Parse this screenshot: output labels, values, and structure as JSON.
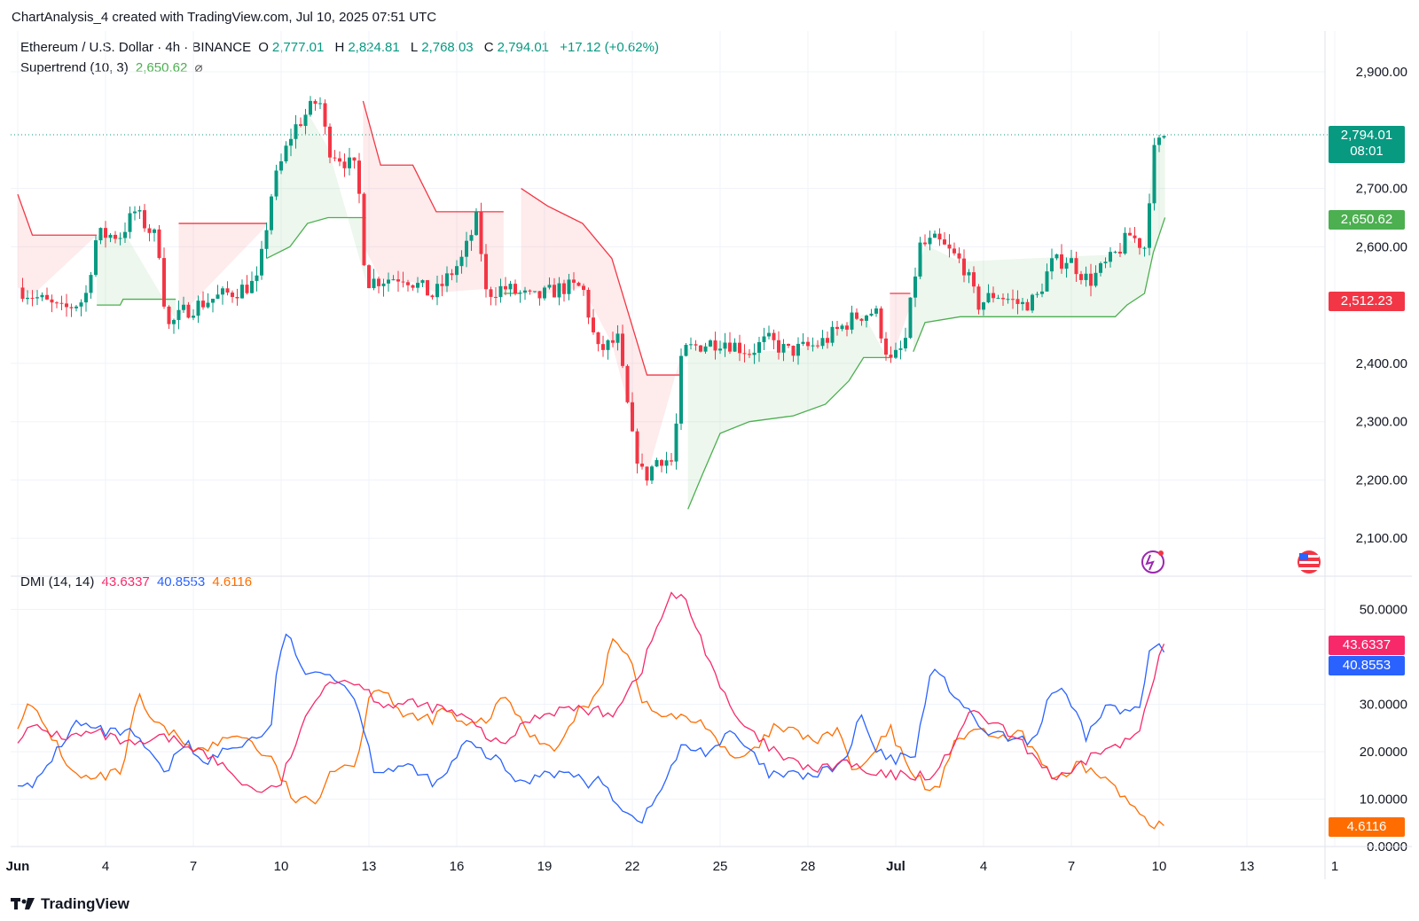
{
  "header": {
    "attribution": "ChartAnalysis_4 created with TradingView.com, Jul 10, 2025 07:51 UTC"
  },
  "symbol": {
    "name": "Ethereum / U.S. Dollar · 4h · BINANCE",
    "o_label": "O",
    "o": "2,777.01",
    "h_label": "H",
    "h": "2,824.81",
    "l_label": "L",
    "l": "2,768.03",
    "c_label": "C",
    "c": "2,794.01",
    "change": "+17.12 (+0.62%)"
  },
  "supertrend": {
    "label": "Supertrend (10, 3)",
    "value": "2,650.62",
    "icon": "hidden-eye-icon"
  },
  "dmi": {
    "label": "DMI (14, 14)",
    "plus_di": "43.6337",
    "minus_di": "40.8553",
    "adx": "4.6116"
  },
  "badges": {
    "price": "2,794.01",
    "countdown": "08:01",
    "supertrend": "2,650.62",
    "supertrend_red": "2,512.23",
    "dmi_plus": "43.6337",
    "dmi_minus": "40.8553",
    "dmi_adx": "4.6116"
  },
  "colors": {
    "up": "#089981",
    "down": "#f23645",
    "st_up": "#4caf50",
    "st_down": "#f23645",
    "plus_di": "#f7296a",
    "minus_di": "#2962ff",
    "adx": "#ff6d00"
  },
  "brand": "TradingView",
  "chart_data": {
    "type": "candlestick",
    "price_axis": {
      "ticks": [
        "2,900.00",
        "2,700.00",
        "2,600.00",
        "2,400.00",
        "2,300.00",
        "2,200.00",
        "2,100.00"
      ],
      "tick_values": [
        2900,
        2700,
        2600,
        2400,
        2300,
        2200,
        2100
      ],
      "range": [
        2035,
        2970
      ]
    },
    "dmi_axis": {
      "ticks": [
        "50.0000",
        "30.0000",
        "20.0000",
        "10.0000",
        "0.0000"
      ],
      "tick_values": [
        50,
        30,
        20,
        10,
        0
      ],
      "range": [
        0,
        57
      ]
    },
    "x_axis": {
      "ticks": [
        "Jun",
        "4",
        "7",
        "10",
        "13",
        "16",
        "19",
        "22",
        "25",
        "28",
        "Jul",
        "4",
        "7",
        "10",
        "13",
        "1"
      ],
      "tick_days": [
        1,
        4,
        7,
        10,
        13,
        16,
        19,
        22,
        25,
        28,
        31,
        34,
        37,
        40,
        43,
        46
      ]
    },
    "close_anchors": [
      [
        1,
        2530
      ],
      [
        2.5,
        2490
      ],
      [
        3.3,
        2510
      ],
      [
        3.7,
        2620
      ],
      [
        4.5,
        2620
      ],
      [
        5,
        2660
      ],
      [
        5.8,
        2610
      ],
      [
        6.1,
        2460
      ],
      [
        6.7,
        2490
      ],
      [
        7.6,
        2510
      ],
      [
        8.5,
        2525
      ],
      [
        9.2,
        2540
      ],
      [
        9.7,
        2700
      ],
      [
        10.4,
        2800
      ],
      [
        11.3,
        2855
      ],
      [
        11.6,
        2770
      ],
      [
        12.6,
        2730
      ],
      [
        12.9,
        2540
      ],
      [
        14.2,
        2550
      ],
      [
        15.2,
        2515
      ],
      [
        16.2,
        2580
      ],
      [
        16.7,
        2650
      ],
      [
        17,
        2520
      ],
      [
        17.6,
        2530
      ],
      [
        18.6,
        2510
      ],
      [
        19.6,
        2530
      ],
      [
        20.3,
        2530
      ],
      [
        20.8,
        2420
      ],
      [
        21.5,
        2440
      ],
      [
        22,
        2270
      ],
      [
        22.4,
        2200
      ],
      [
        22.9,
        2240
      ],
      [
        23.4,
        2230
      ],
      [
        23.7,
        2420
      ],
      [
        24.2,
        2430
      ],
      [
        25.1,
        2440
      ],
      [
        26,
        2420
      ],
      [
        26.6,
        2440
      ],
      [
        27.3,
        2420
      ],
      [
        28.2,
        2430
      ],
      [
        28.6,
        2440
      ],
      [
        29.6,
        2480
      ],
      [
        30.3,
        2490
      ],
      [
        30.8,
        2400
      ],
      [
        31.3,
        2430
      ],
      [
        31.8,
        2600
      ],
      [
        32.4,
        2610
      ],
      [
        33.3,
        2570
      ],
      [
        33.8,
        2500
      ],
      [
        34.4,
        2520
      ],
      [
        35.3,
        2500
      ],
      [
        35.8,
        2510
      ],
      [
        36.3,
        2570
      ],
      [
        36.9,
        2580
      ],
      [
        37.6,
        2540
      ],
      [
        38.4,
        2580
      ],
      [
        39,
        2620
      ],
      [
        39.5,
        2600
      ],
      [
        39.8,
        2760
      ],
      [
        40.2,
        2794
      ]
    ],
    "supertrend_anchors": [
      [
        1,
        2690,
        "down"
      ],
      [
        1.5,
        2620,
        "down"
      ],
      [
        3.7,
        2620,
        "down"
      ],
      [
        3.7,
        2500,
        "up"
      ],
      [
        4.5,
        2500,
        "up"
      ],
      [
        4.6,
        2510,
        "up"
      ],
      [
        6.4,
        2510,
        "up"
      ],
      [
        6.5,
        2640,
        "down"
      ],
      [
        9.5,
        2640,
        "down"
      ],
      [
        9.5,
        2580,
        "up"
      ],
      [
        10.3,
        2600,
        "up"
      ],
      [
        10.9,
        2640,
        "up"
      ],
      [
        11.6,
        2650,
        "up"
      ],
      [
        12.9,
        2650,
        "up"
      ],
      [
        12.8,
        2850,
        "down"
      ],
      [
        13.4,
        2740,
        "down"
      ],
      [
        14.5,
        2740,
        "down"
      ],
      [
        15.3,
        2660,
        "down"
      ],
      [
        17.6,
        2660,
        "down"
      ],
      [
        17.6,
        2520,
        "up"
      ],
      [
        18.2,
        2520,
        "up"
      ],
      [
        18.2,
        2700,
        "down"
      ],
      [
        19.1,
        2670,
        "down"
      ],
      [
        20.3,
        2640,
        "down"
      ],
      [
        21.3,
        2580,
        "down"
      ],
      [
        22.5,
        2380,
        "down"
      ],
      [
        23.7,
        2380,
        "down"
      ],
      [
        23.9,
        2150,
        "up"
      ],
      [
        24.4,
        2210,
        "up"
      ],
      [
        25,
        2280,
        "up"
      ],
      [
        26,
        2300,
        "up"
      ],
      [
        27.5,
        2310,
        "up"
      ],
      [
        28.6,
        2330,
        "up"
      ],
      [
        29.4,
        2370,
        "up"
      ],
      [
        29.9,
        2410,
        "up"
      ],
      [
        30.8,
        2410,
        "up"
      ],
      [
        30.8,
        2520,
        "down"
      ],
      [
        31.5,
        2520,
        "down"
      ],
      [
        31.6,
        2420,
        "up"
      ],
      [
        32,
        2470,
        "up"
      ],
      [
        33.2,
        2480,
        "up"
      ],
      [
        38.5,
        2480,
        "up"
      ],
      [
        38.9,
        2500,
        "up"
      ],
      [
        39.5,
        2520,
        "up"
      ],
      [
        39.8,
        2590,
        "up"
      ],
      [
        40.2,
        2650,
        "up"
      ]
    ],
    "plus_di_anchors": [
      [
        1,
        23
      ],
      [
        1.5,
        25
      ],
      [
        2.7,
        23
      ],
      [
        3.7,
        24
      ],
      [
        5,
        21
      ],
      [
        6,
        23
      ],
      [
        7,
        21
      ],
      [
        8,
        17
      ],
      [
        9,
        12
      ],
      [
        9.9,
        12
      ],
      [
        10.5,
        22
      ],
      [
        11.5,
        35
      ],
      [
        12.5,
        35
      ],
      [
        13.5,
        30
      ],
      [
        14.5,
        30
      ],
      [
        15.5,
        29
      ],
      [
        16.3,
        27
      ],
      [
        17.5,
        21
      ],
      [
        18.5,
        27
      ],
      [
        19.5,
        29
      ],
      [
        20.2,
        29
      ],
      [
        21.3,
        28
      ],
      [
        22.3,
        37
      ],
      [
        22.7,
        44
      ],
      [
        23.3,
        53
      ],
      [
        23.8,
        52
      ],
      [
        24.6,
        40
      ],
      [
        25.4,
        28
      ],
      [
        26.2,
        23
      ],
      [
        27.3,
        18
      ],
      [
        28.4,
        16
      ],
      [
        29.3,
        18
      ],
      [
        30.1,
        15
      ],
      [
        31,
        15
      ],
      [
        31.7,
        15
      ],
      [
        32.4,
        15
      ],
      [
        33.4,
        27
      ],
      [
        33.8,
        28
      ],
      [
        34.8,
        24
      ],
      [
        35.6,
        20
      ],
      [
        36.5,
        14
      ],
      [
        37.2,
        16
      ],
      [
        37.8,
        20
      ],
      [
        38.6,
        21
      ],
      [
        39.3,
        24
      ],
      [
        39.7,
        34
      ],
      [
        40.2,
        43.6
      ]
    ],
    "minus_di_anchors": [
      [
        1,
        14
      ],
      [
        1.5,
        12
      ],
      [
        2.3,
        20
      ],
      [
        3,
        26
      ],
      [
        4,
        24
      ],
      [
        4.8,
        24
      ],
      [
        5.5,
        20
      ],
      [
        6,
        15
      ],
      [
        6.8,
        23
      ],
      [
        7.3,
        17
      ],
      [
        8,
        20
      ],
      [
        8.8,
        22
      ],
      [
        9.7,
        25
      ],
      [
        9.9,
        41
      ],
      [
        10.3,
        45
      ],
      [
        10.8,
        35
      ],
      [
        11.4,
        38
      ],
      [
        12.5,
        32
      ],
      [
        13.2,
        16
      ],
      [
        14.2,
        17
      ],
      [
        15.4,
        13
      ],
      [
        16.3,
        22
      ],
      [
        17.4,
        18
      ],
      [
        18.2,
        13
      ],
      [
        19,
        16
      ],
      [
        20,
        15
      ],
      [
        20.6,
        13
      ],
      [
        21,
        14
      ],
      [
        21.4,
        10
      ],
      [
        22,
        6
      ],
      [
        22.4,
        6
      ],
      [
        22.8,
        10
      ],
      [
        23.7,
        21
      ],
      [
        24.6,
        20
      ],
      [
        25.4,
        24
      ],
      [
        26,
        20
      ],
      [
        26.7,
        15
      ],
      [
        28.3,
        15
      ],
      [
        29.3,
        18
      ],
      [
        29.8,
        28
      ],
      [
        30.3,
        20
      ],
      [
        30.9,
        18
      ],
      [
        31.7,
        20
      ],
      [
        32.2,
        38
      ],
      [
        33.3,
        30
      ],
      [
        33.8,
        25
      ],
      [
        34.7,
        23
      ],
      [
        35.3,
        22
      ],
      [
        35.8,
        23
      ],
      [
        36.3,
        33
      ],
      [
        36.8,
        32
      ],
      [
        37.5,
        23
      ],
      [
        38.2,
        30
      ],
      [
        38.8,
        28
      ],
      [
        39.4,
        30
      ],
      [
        39.7,
        44
      ],
      [
        40.2,
        41
      ]
    ],
    "adx_anchors": [
      [
        1,
        26
      ],
      [
        1.4,
        30
      ],
      [
        2.3,
        22
      ],
      [
        2.9,
        15
      ],
      [
        3.6,
        14
      ],
      [
        4.6,
        16
      ],
      [
        5.1,
        32
      ],
      [
        5.6,
        26
      ],
      [
        6.5,
        23
      ],
      [
        7.3,
        20
      ],
      [
        7.9,
        22
      ],
      [
        8.6,
        24
      ],
      [
        9.3,
        20
      ],
      [
        9.7,
        18
      ],
      [
        10.4,
        10
      ],
      [
        11.2,
        9
      ],
      [
        11.6,
        16
      ],
      [
        12.6,
        18
      ],
      [
        13.1,
        34
      ],
      [
        13.6,
        33
      ],
      [
        14.2,
        27
      ],
      [
        15.2,
        27
      ],
      [
        15.6,
        29
      ],
      [
        16.3,
        25
      ],
      [
        17.1,
        27
      ],
      [
        17.7,
        32
      ],
      [
        18.3,
        25
      ],
      [
        18.9,
        22
      ],
      [
        19.5,
        21
      ],
      [
        20.2,
        29
      ],
      [
        20.9,
        32
      ],
      [
        21.3,
        45
      ],
      [
        21.9,
        40
      ],
      [
        22.4,
        30
      ],
      [
        22.8,
        28
      ],
      [
        23.7,
        27
      ],
      [
        24.5,
        26
      ],
      [
        25.4,
        18
      ],
      [
        26.2,
        20
      ],
      [
        26.8,
        25
      ],
      [
        27.6,
        24
      ],
      [
        28.4,
        22
      ],
      [
        29,
        25
      ],
      [
        29.6,
        15
      ],
      [
        30.3,
        20
      ],
      [
        30.8,
        25
      ],
      [
        31.3,
        18
      ],
      [
        32,
        13
      ],
      [
        32.5,
        12
      ],
      [
        33,
        23
      ],
      [
        33.5,
        23
      ],
      [
        34,
        25
      ],
      [
        34.5,
        22
      ],
      [
        35.2,
        24
      ],
      [
        35.8,
        20
      ],
      [
        36.3,
        15
      ],
      [
        36.8,
        14
      ],
      [
        37.2,
        17
      ],
      [
        38.1,
        15
      ],
      [
        38.8,
        10
      ],
      [
        39.4,
        7
      ],
      [
        39.8,
        5
      ],
      [
        40.2,
        4.6
      ]
    ]
  }
}
